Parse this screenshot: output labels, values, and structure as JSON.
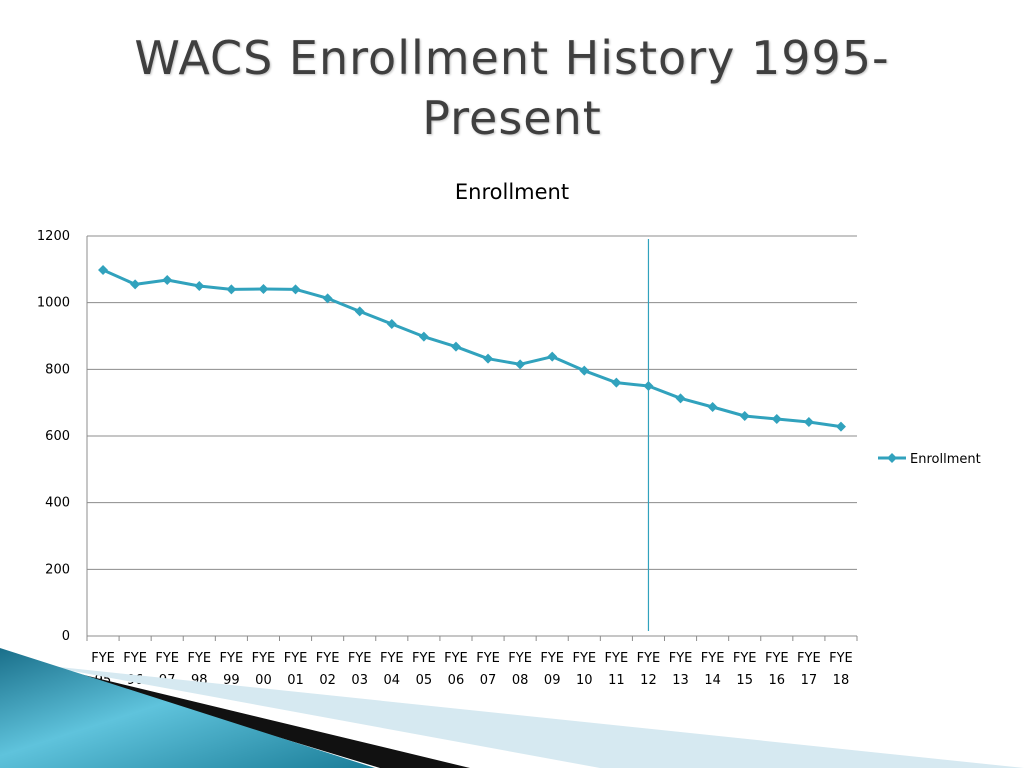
{
  "slide": {
    "title_line1": "WACS Enrollment History 1995-",
    "title_line2": "Present"
  },
  "colors": {
    "series": "#31A2BD",
    "grid": "#8c8c8c",
    "marker_line": "#31A2BD",
    "title": "#3f3f3f"
  },
  "chart_data": {
    "type": "line",
    "title": "Enrollment",
    "xlabel": "",
    "ylabel": "",
    "ylim": [
      0,
      1200
    ],
    "yticks": [
      0,
      200,
      400,
      600,
      800,
      1000,
      1200
    ],
    "grid": true,
    "legend_position": "right",
    "categories": [
      [
        "FYE",
        "95"
      ],
      [
        "FYE",
        "96"
      ],
      [
        "FYE",
        "97"
      ],
      [
        "FYE",
        "98"
      ],
      [
        "FYE",
        "99"
      ],
      [
        "FYE",
        "00"
      ],
      [
        "FYE",
        "01"
      ],
      [
        "FYE",
        "02"
      ],
      [
        "FYE",
        "03"
      ],
      [
        "FYE",
        "04"
      ],
      [
        "FYE",
        "05"
      ],
      [
        "FYE",
        "06"
      ],
      [
        "FYE",
        "07"
      ],
      [
        "FYE",
        "08"
      ],
      [
        "FYE",
        "09"
      ],
      [
        "FYE",
        "10"
      ],
      [
        "FYE",
        "11"
      ],
      [
        "FYE",
        "12"
      ],
      [
        "FYE",
        "13"
      ],
      [
        "FYE",
        "14"
      ],
      [
        "FYE",
        "15"
      ],
      [
        "FYE",
        "16"
      ],
      [
        "FYE",
        "17"
      ],
      [
        "FYE",
        "18"
      ]
    ],
    "series": [
      {
        "name": "Enrollment",
        "values": [
          1098,
          1055,
          1068,
          1050,
          1040,
          1041,
          1040,
          1013,
          974,
          936,
          898,
          868,
          832,
          815,
          838,
          796,
          760,
          750,
          713,
          687,
          660,
          651,
          642,
          628
        ]
      }
    ],
    "reference_line_category": "12"
  }
}
